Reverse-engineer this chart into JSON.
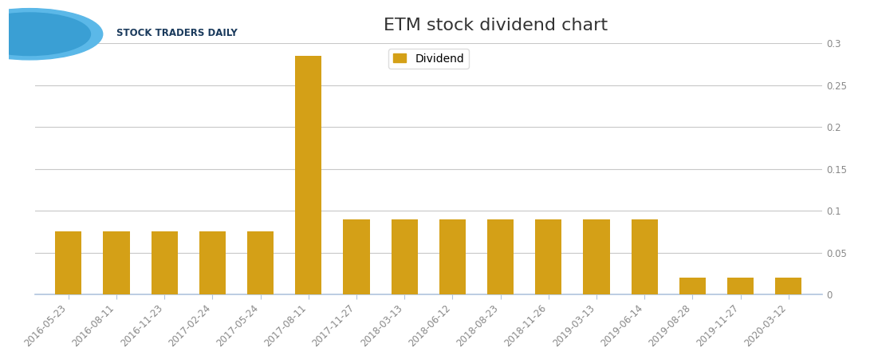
{
  "title": "ETM stock dividend chart",
  "categories": [
    "2016-05-23",
    "2016-08-11",
    "2016-11-23",
    "2017-02-24",
    "2017-05-24",
    "2017-08-11",
    "2017-11-27",
    "2018-03-13",
    "2018-06-12",
    "2018-08-23",
    "2018-11-26",
    "2019-03-13",
    "2019-06-14",
    "2019-08-28",
    "2019-11-27",
    "2020-03-12"
  ],
  "values": [
    0.075,
    0.075,
    0.075,
    0.075,
    0.075,
    0.285,
    0.09,
    0.09,
    0.09,
    0.09,
    0.09,
    0.09,
    0.09,
    0.02,
    0.02,
    0.02
  ],
  "bar_color": "#D4A017",
  "legend_label": "Dividend",
  "ylim": [
    0,
    0.3
  ],
  "yticks": [
    0,
    0.05,
    0.1,
    0.15,
    0.2,
    0.25,
    0.3
  ],
  "background_color": "#ffffff",
  "grid_color": "#c8c8c8",
  "title_fontsize": 16,
  "tick_fontsize": 8.5,
  "legend_fontsize": 10,
  "tick_color": "#888888",
  "axis_line_color": "#b0c4de",
  "logo_text": "STOCK TRADERS DAILY",
  "logo_text_color": "#1a3a5c"
}
